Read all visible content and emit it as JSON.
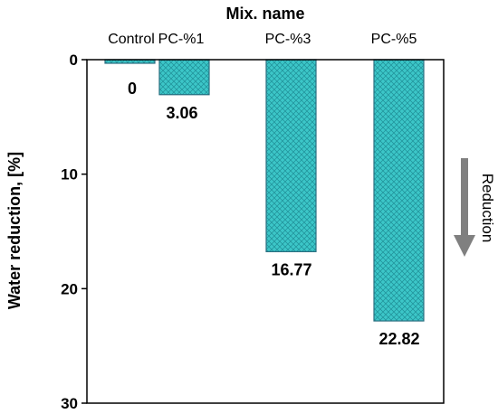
{
  "chart_data": {
    "type": "bar",
    "title": "",
    "xlabel": "Mix. name",
    "ylabel": "Water reduction, [%]",
    "categories": [
      "Control",
      "PC-%1",
      "PC-%3",
      "PC-%5"
    ],
    "values": [
      0,
      3.06,
      16.77,
      22.82
    ],
    "data_labels": [
      "0",
      "3.06",
      "16.77",
      "22.82"
    ],
    "ylim": [
      0,
      30
    ],
    "y_inverted": true,
    "yticks": [
      0,
      10,
      20,
      30
    ],
    "ytick_labels": [
      "0",
      "10",
      "20",
      "30"
    ],
    "x_axis_position": "top",
    "grid": false,
    "bar_color": "#3cc6c8",
    "bar_edge_color": "#2a6f80",
    "pattern": "crosshatch",
    "annotation": {
      "text": "Reduction",
      "arrow_direction": "down",
      "arrow_color": "#808080"
    }
  }
}
